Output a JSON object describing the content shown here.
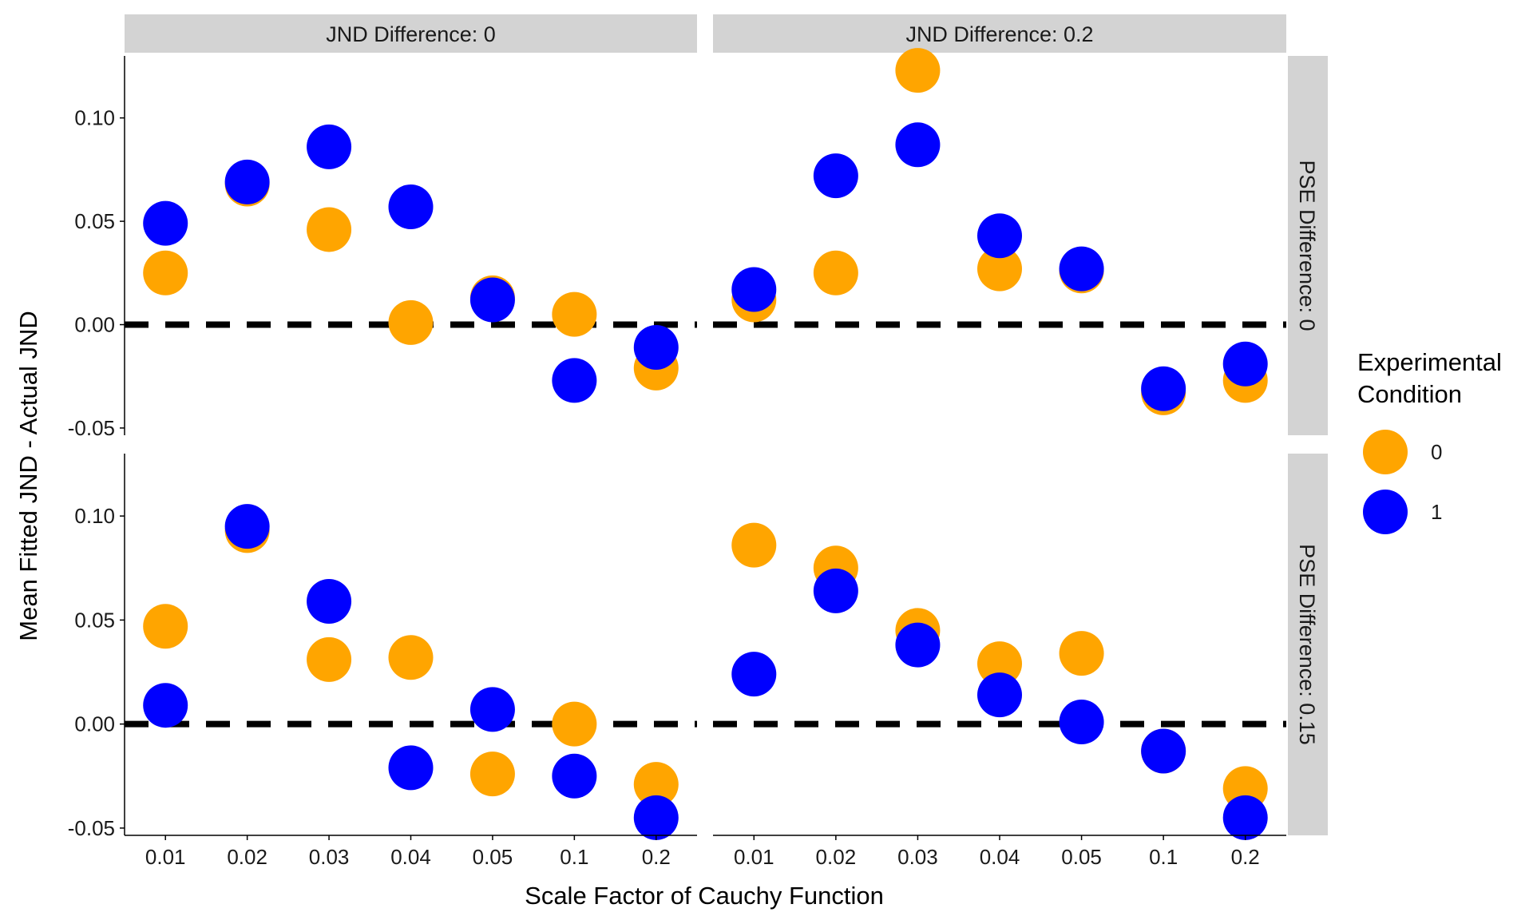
{
  "chart_data": {
    "type": "scatter",
    "xlabel": "Scale Factor of Cauchy Function",
    "ylabel": "Mean Fitted JND - Actual JND",
    "categories": [
      "0.01",
      "0.02",
      "0.03",
      "0.04",
      "0.05",
      "0.1",
      "0.2"
    ],
    "ylim": [
      -0.05,
      0.13
    ],
    "yticks": [
      "0.10",
      "0.05",
      "0.00",
      "-0.05"
    ],
    "ytick_values": [
      0.1,
      0.05,
      0.0,
      -0.05
    ],
    "reference_line_y": 0,
    "col_facets": [
      "JND Difference: 0",
      "JND Difference: 0.2"
    ],
    "row_facets": [
      "PSE Difference: 0",
      "PSE Difference: 0.15"
    ],
    "legend": {
      "title_lines": [
        "Experimental",
        "Condition"
      ],
      "position": "right",
      "items": [
        {
          "label": "0",
          "color": "#FFA500"
        },
        {
          "label": "1",
          "color": "#0000FF"
        }
      ]
    },
    "panels": [
      {
        "row": 0,
        "col": 0,
        "series": [
          {
            "name": "0",
            "values": [
              0.025,
              0.068,
              0.046,
              0.001,
              0.013,
              0.005,
              -0.021
            ]
          },
          {
            "name": "1",
            "values": [
              0.049,
              0.069,
              0.086,
              0.057,
              0.012,
              -0.027,
              -0.011
            ]
          }
        ]
      },
      {
        "row": 0,
        "col": 1,
        "series": [
          {
            "name": "0",
            "values": [
              0.012,
              0.025,
              0.123,
              0.027,
              0.026,
              -0.033,
              -0.027
            ]
          },
          {
            "name": "1",
            "values": [
              0.017,
              0.072,
              0.087,
              0.043,
              0.027,
              -0.031,
              -0.019
            ]
          }
        ]
      },
      {
        "row": 1,
        "col": 0,
        "series": [
          {
            "name": "0",
            "values": [
              0.047,
              0.093,
              0.031,
              0.032,
              -0.024,
              0.0,
              -0.029
            ]
          },
          {
            "name": "1",
            "values": [
              0.009,
              0.095,
              0.059,
              -0.021,
              0.007,
              -0.025,
              -0.045
            ]
          }
        ]
      },
      {
        "row": 1,
        "col": 1,
        "series": [
          {
            "name": "0",
            "values": [
              0.086,
              0.075,
              0.045,
              0.029,
              0.034,
              -0.013,
              -0.031
            ]
          },
          {
            "name": "1",
            "values": [
              0.024,
              0.064,
              0.038,
              0.014,
              0.001,
              -0.013,
              -0.045
            ]
          }
        ]
      }
    ]
  }
}
